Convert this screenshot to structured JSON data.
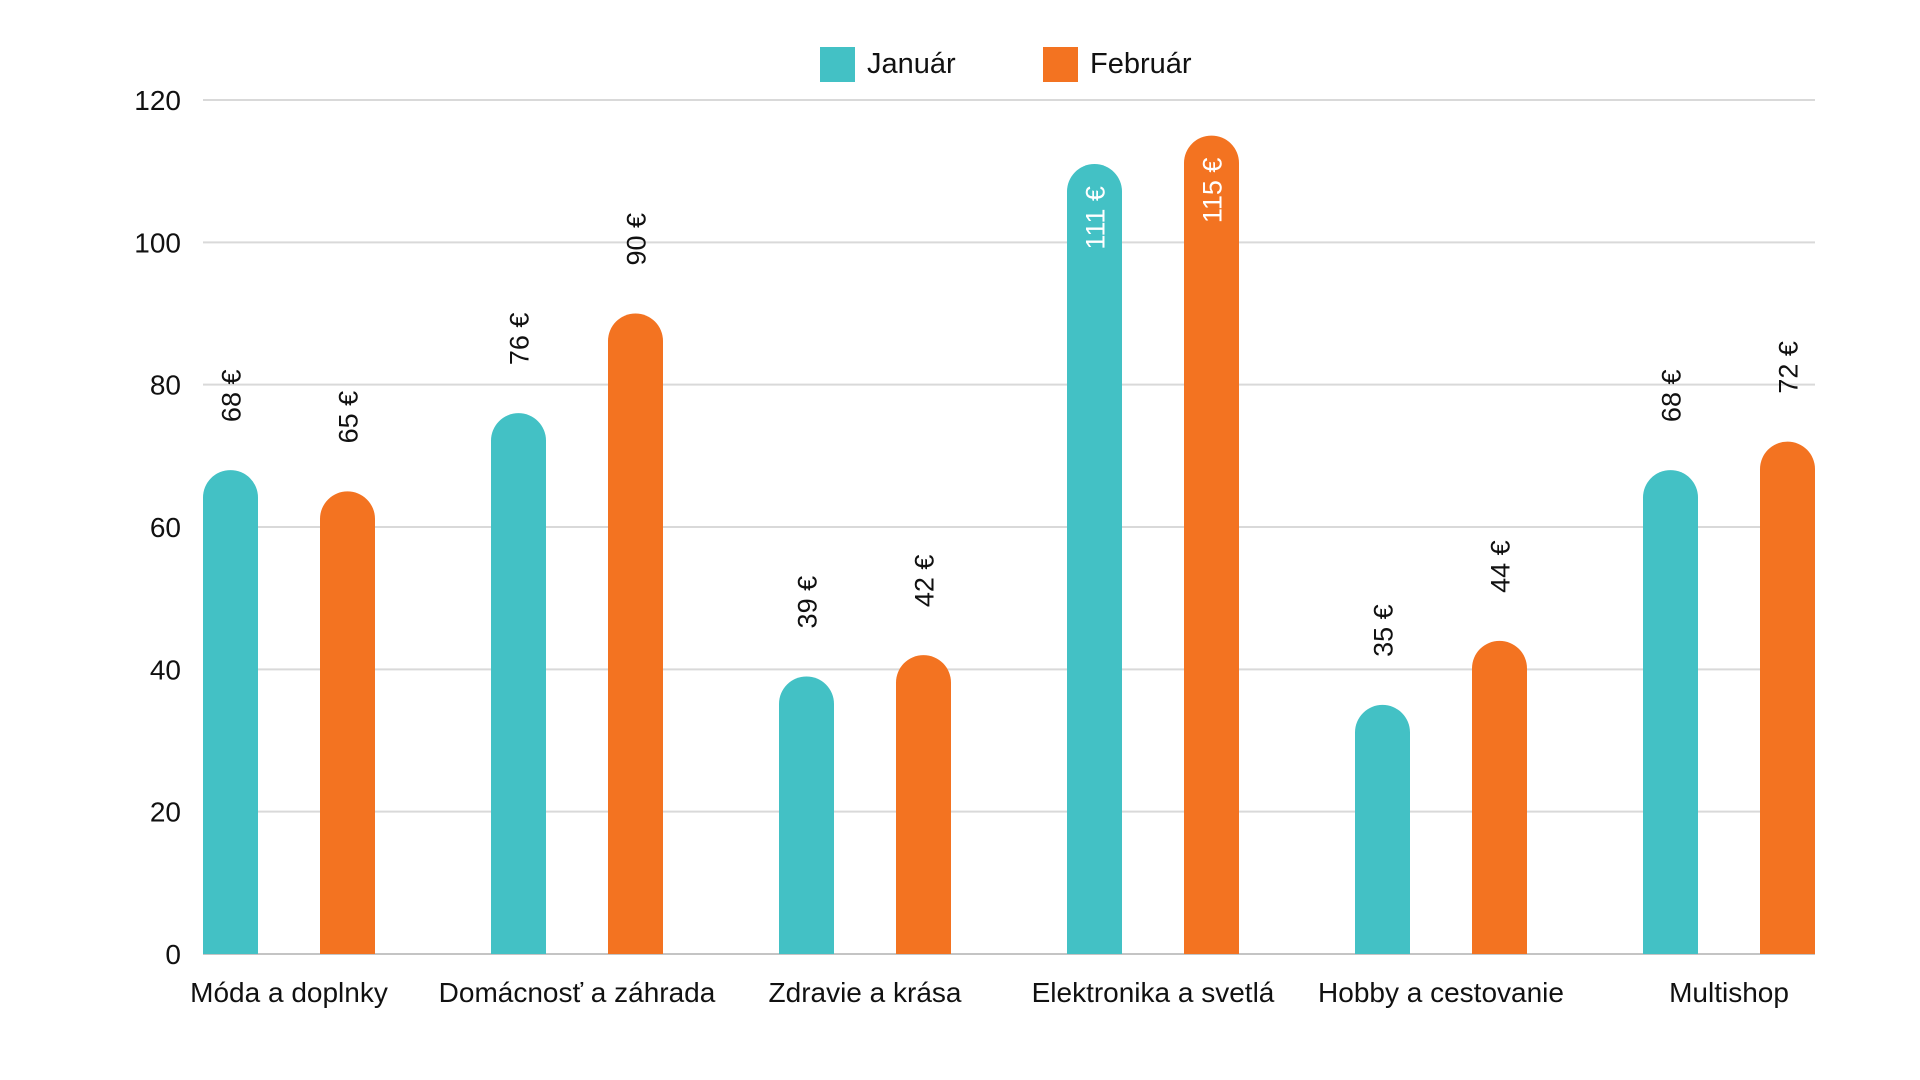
{
  "chart_data": {
    "type": "bar",
    "title": "",
    "xlabel": "",
    "ylabel": "",
    "ylim": [
      0,
      120
    ],
    "yticks": [
      0,
      20,
      40,
      60,
      80,
      100,
      120
    ],
    "grid": true,
    "legend_position": "top-center",
    "value_suffix": " €",
    "categories": [
      "Móda a doplnky",
      "Domácnosť a záhrada",
      "Zdravie a krása",
      "Elektronika a svetlá",
      "Hobby a cestovanie",
      "Multishop"
    ],
    "series": [
      {
        "name": "Január",
        "color": "#43C1C5",
        "values": [
          68,
          76,
          39,
          111,
          35,
          68
        ]
      },
      {
        "name": "Február",
        "color": "#F37321",
        "values": [
          65,
          90,
          42,
          115,
          44,
          72
        ]
      }
    ]
  }
}
